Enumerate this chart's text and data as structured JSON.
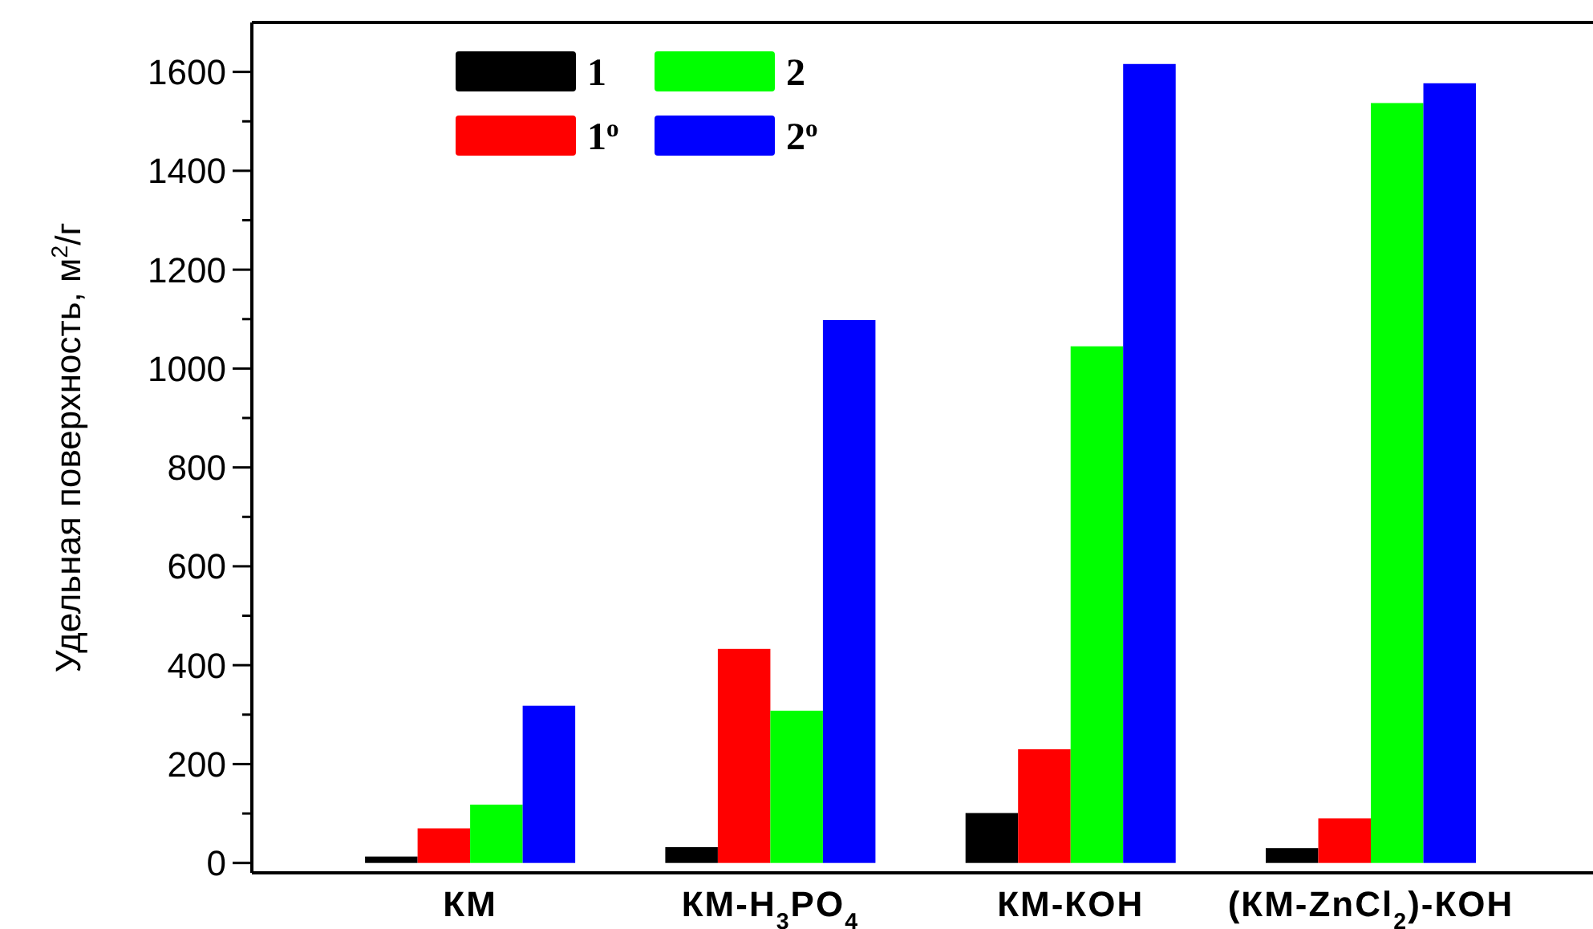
{
  "chart_data": {
    "type": "bar",
    "ylabel": "Удельная поверхность, м$^{2}$/г",
    "categories": [
      "КМ",
      "КМ-H$_{3}$PO$_{4}$",
      "КМ-КОН",
      "(КМ-ZnCl$_{2}$)-КОН"
    ],
    "series": [
      {
        "name": "1",
        "color": "#000000",
        "values": [
          13,
          32,
          101,
          30
        ]
      },
      {
        "name": "1$^{o}$",
        "color": "#ff0000",
        "values": [
          70,
          433,
          230,
          90
        ]
      },
      {
        "name": "2",
        "color": "#00ff00",
        "values": [
          118,
          308,
          1045,
          1537
        ]
      },
      {
        "name": "2$^{o}$",
        "color": "#0000ff",
        "values": [
          318,
          1098,
          1616,
          1577
        ]
      }
    ],
    "ylim": [
      -20,
      1700
    ],
    "yticks": [
      0,
      {
        "value": 100,
        "label": null
      },
      200,
      {
        "value": 300,
        "label": null
      },
      400,
      {
        "value": 500,
        "label": null
      },
      600,
      {
        "value": 700,
        "label": null
      },
      800,
      {
        "value": 900,
        "label": null
      },
      1000,
      {
        "value": 1100,
        "label": null
      },
      1200,
      {
        "value": 1300,
        "label": null
      },
      1400,
      {
        "value": 1500,
        "label": null
      },
      1600
    ],
    "grid": false,
    "legend": "top left"
  }
}
